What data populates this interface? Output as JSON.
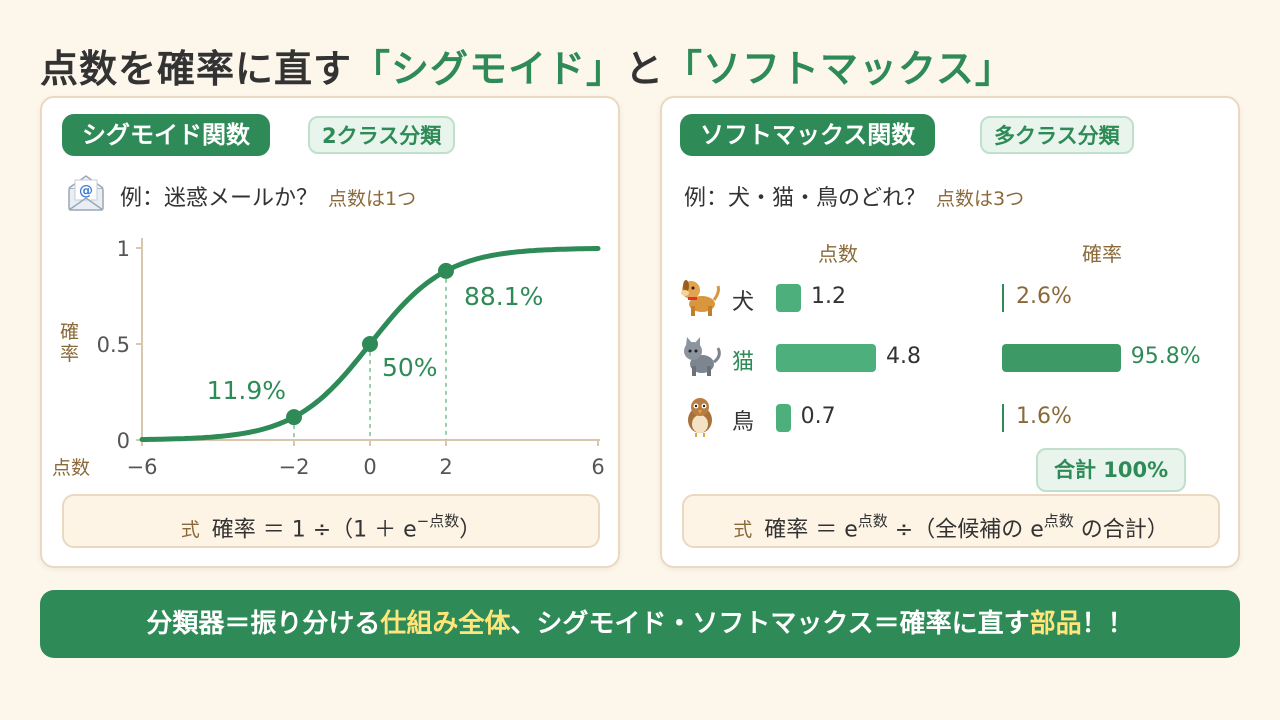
{
  "title": {
    "part1": "点数を確率に直す",
    "part2": "「シグモイド」",
    "part3": "と",
    "part4": "「ソフトマックス」"
  },
  "left_panel": {
    "badge": "シグモイド関数",
    "sub_badge": "2クラス分類",
    "example": "例：迷惑メールか？",
    "example_note": "点数は1つ",
    "icon": "email-icon",
    "formula_label": "式",
    "formula_main": "確率 ＝ 1 ÷（1 ＋ e",
    "formula_sup": "−点数",
    "formula_end": "）"
  },
  "chart_data": {
    "type": "line",
    "function": "sigmoid",
    "x_range": [
      -6,
      6
    ],
    "ylim": [
      0,
      1
    ],
    "x_ticks": [
      "−6",
      "−2",
      "0",
      "2",
      "6"
    ],
    "x_tick_values": [
      -6,
      -2,
      0,
      2,
      6
    ],
    "y_ticks": [
      "0",
      "0.5",
      "1"
    ],
    "y_tick_values": [
      0,
      0.5,
      1
    ],
    "xlabel": "点数",
    "ylabel": "確率",
    "points": [
      {
        "x": -2,
        "y": 0.119,
        "label": "11.9%"
      },
      {
        "x": 0,
        "y": 0.5,
        "label": "50%"
      },
      {
        "x": 2,
        "y": 0.881,
        "label": "88.1%"
      }
    ],
    "color": "#2e8b57"
  },
  "right_panel": {
    "badge": "ソフトマックス関数",
    "sub_badge": "多クラス分類",
    "example": "例：犬・猫・鳥のどれ？",
    "example_note": "点数は3つ",
    "col_score": "点数",
    "col_prob": "確率",
    "rows": [
      {
        "label": "犬",
        "icon": "dog-icon",
        "score": 1.2,
        "score_text": "1.2",
        "prob": 2.6,
        "prob_text": "2.6%"
      },
      {
        "label": "猫",
        "icon": "cat-icon",
        "score": 4.8,
        "score_text": "4.8",
        "prob": 95.8,
        "prob_text": "95.8%"
      },
      {
        "label": "鳥",
        "icon": "bird-icon",
        "score": 0.7,
        "score_text": "0.7",
        "prob": 1.6,
        "prob_text": "1.6%"
      }
    ],
    "sum": "合計 100%",
    "formula_label": "式",
    "formula_a": "確率 ＝ e",
    "formula_sup1": "点数",
    "formula_b": " ÷（全候補の e",
    "formula_sup2": "点数",
    "formula_c": " の合計）"
  },
  "banner": {
    "p1": "分類器＝振り分ける",
    "p2": "仕組み全体",
    "p3": "、シグモイド・ソフトマックス＝確率に直す",
    "p4": "部品",
    "p5": "！！"
  }
}
